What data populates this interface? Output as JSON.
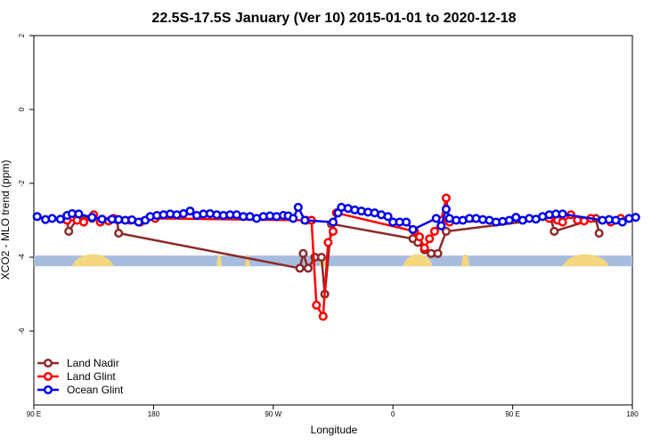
{
  "chart_data": {
    "type": "line",
    "title": "22.5S-17.5S January (Ver 10)   2015-01-01 to 2020-12-18",
    "xlabel": "Longitude",
    "ylabel": "XCO2 - MLO trend (ppm)",
    "xlim": [
      90,
      450
    ],
    "ylim": [
      -8,
      2
    ],
    "x_ticks": [
      {
        "value": 90,
        "label": "90 E"
      },
      {
        "value": 162,
        "label": "180"
      },
      {
        "value": 234,
        "label": "90 W"
      },
      {
        "value": 306,
        "label": "0"
      },
      {
        "value": 378,
        "label": "90 E"
      },
      {
        "value": 450,
        "label": "180"
      }
    ],
    "y_ticks": [
      {
        "value": 2,
        "label": "2"
      },
      {
        "value": 0,
        "label": "0"
      },
      {
        "value": -2,
        "label": "-2"
      },
      {
        "value": -4,
        "label": "-4"
      },
      {
        "value": -6,
        "label": "-6"
      }
    ],
    "grid": false,
    "legend_position": "bottom-left",
    "land_mask_y": -4.1,
    "land_mask_color": "#a6bde0",
    "land_color": "#f5d77e",
    "land_segments": [
      [
        113,
        138
      ],
      [
        200,
        203
      ],
      [
        217,
        220
      ],
      [
        262,
        266
      ],
      [
        312,
        330
      ],
      [
        347,
        352
      ],
      [
        408,
        436
      ]
    ],
    "series": [
      {
        "name": "Land Nadir",
        "color": "#8b2a2a",
        "points": [
          [
            110,
            -3.0
          ],
          [
            111,
            -3.3
          ],
          [
            117,
            -2.9
          ],
          [
            125,
            -2.95
          ],
          [
            140,
            -2.98
          ],
          [
            141,
            -3.35
          ],
          [
            250,
            -4.3
          ],
          [
            252,
            -3.9
          ],
          [
            255,
            -4.3
          ],
          [
            259,
            -4.0
          ],
          [
            263,
            -4.0
          ],
          [
            265,
            -5.0
          ],
          [
            269,
            -3.1
          ],
          [
            318,
            -3.5
          ],
          [
            321,
            -3.6
          ],
          [
            325,
            -3.8
          ],
          [
            329,
            -3.9
          ],
          [
            333,
            -3.9
          ],
          [
            338,
            -3.3
          ],
          [
            401,
            -2.95
          ],
          [
            403,
            -3.3
          ],
          [
            428,
            -2.95
          ],
          [
            430,
            -3.35
          ]
        ]
      },
      {
        "name": "Land Glint",
        "color": "#ff0000",
        "points": [
          [
            110,
            -3.0
          ],
          [
            116,
            -3.0
          ],
          [
            120,
            -3.05
          ],
          [
            126,
            -2.85
          ],
          [
            130,
            -3.05
          ],
          [
            135,
            -3.02
          ],
          [
            138,
            -2.95
          ],
          [
            148,
            -3.0
          ],
          [
            154,
            -3.05
          ],
          [
            163,
            -2.95
          ],
          [
            254,
            -3.0
          ],
          [
            257,
            -3.0
          ],
          [
            260,
            -5.3
          ],
          [
            264,
            -5.6
          ],
          [
            267,
            -3.6
          ],
          [
            270,
            -3.3
          ],
          [
            272,
            -2.8
          ],
          [
            319,
            -3.3
          ],
          [
            322,
            -3.45
          ],
          [
            325,
            -3.75
          ],
          [
            328,
            -3.5
          ],
          [
            331,
            -3.3
          ],
          [
            335,
            -3.0
          ],
          [
            338,
            -2.4
          ],
          [
            340,
            -3.05
          ],
          [
            400,
            -2.95
          ],
          [
            405,
            -3.0
          ],
          [
            408,
            -3.05
          ],
          [
            413,
            -2.85
          ],
          [
            417,
            -3.0
          ],
          [
            421,
            -3.02
          ],
          [
            425,
            -2.95
          ],
          [
            437,
            -3.05
          ],
          [
            443,
            -2.95
          ]
        ]
      },
      {
        "name": "Ocean Glint",
        "color": "#0000ee",
        "points": [
          [
            92,
            -2.9
          ],
          [
            97,
            -2.98
          ],
          [
            101,
            -2.95
          ],
          [
            106,
            -2.97
          ],
          [
            110,
            -2.87
          ],
          [
            113,
            -2.82
          ],
          [
            117,
            -2.83
          ],
          [
            125,
            -2.92
          ],
          [
            131,
            -2.97
          ],
          [
            137,
            -2.97
          ],
          [
            141,
            -2.98
          ],
          [
            145,
            -3.0
          ],
          [
            149,
            -2.99
          ],
          [
            153,
            -3.05
          ],
          [
            157,
            -3.0
          ],
          [
            160,
            -2.9
          ],
          [
            164,
            -2.87
          ],
          [
            168,
            -2.85
          ],
          [
            172,
            -2.83
          ],
          [
            176,
            -2.85
          ],
          [
            180,
            -2.82
          ],
          [
            184,
            -2.75
          ],
          [
            188,
            -2.87
          ],
          [
            192,
            -2.83
          ],
          [
            196,
            -2.82
          ],
          [
            200,
            -2.85
          ],
          [
            204,
            -2.87
          ],
          [
            208,
            -2.85
          ],
          [
            212,
            -2.85
          ],
          [
            216,
            -2.9
          ],
          [
            220,
            -2.9
          ],
          [
            224,
            -2.95
          ],
          [
            228,
            -2.9
          ],
          [
            232,
            -2.88
          ],
          [
            236,
            -2.9
          ],
          [
            240,
            -2.87
          ],
          [
            243,
            -2.88
          ],
          [
            246,
            -2.95
          ],
          [
            249,
            -2.65
          ],
          [
            253,
            -3.0
          ],
          [
            270,
            -3.05
          ],
          [
            273,
            -2.8
          ],
          [
            275,
            -2.65
          ],
          [
            279,
            -2.68
          ],
          [
            283,
            -2.72
          ],
          [
            287,
            -2.75
          ],
          [
            291,
            -2.78
          ],
          [
            295,
            -2.8
          ],
          [
            299,
            -2.85
          ],
          [
            303,
            -2.9
          ],
          [
            306,
            -3.05
          ],
          [
            310,
            -3.05
          ],
          [
            314,
            -3.05
          ],
          [
            318,
            -3.25
          ],
          [
            332,
            -2.95
          ],
          [
            335,
            -3.15
          ],
          [
            338,
            -2.7
          ],
          [
            340,
            -2.95
          ],
          [
            344,
            -3.0
          ],
          [
            348,
            -3.0
          ],
          [
            352,
            -2.95
          ],
          [
            356,
            -2.95
          ],
          [
            360,
            -2.98
          ],
          [
            364,
            -3.0
          ],
          [
            368,
            -3.05
          ],
          [
            372,
            -3.03
          ],
          [
            376,
            -3.0
          ],
          [
            380,
            -2.92
          ],
          [
            384,
            -3.0
          ],
          [
            388,
            -2.95
          ],
          [
            392,
            -2.97
          ],
          [
            396,
            -2.9
          ],
          [
            400,
            -2.85
          ],
          [
            404,
            -2.83
          ],
          [
            408,
            -2.83
          ],
          [
            432,
            -3.0
          ],
          [
            436,
            -2.98
          ],
          [
            440,
            -3.0
          ],
          [
            444,
            -3.05
          ],
          [
            448,
            -2.95
          ],
          [
            452,
            -2.92
          ]
        ]
      }
    ]
  }
}
